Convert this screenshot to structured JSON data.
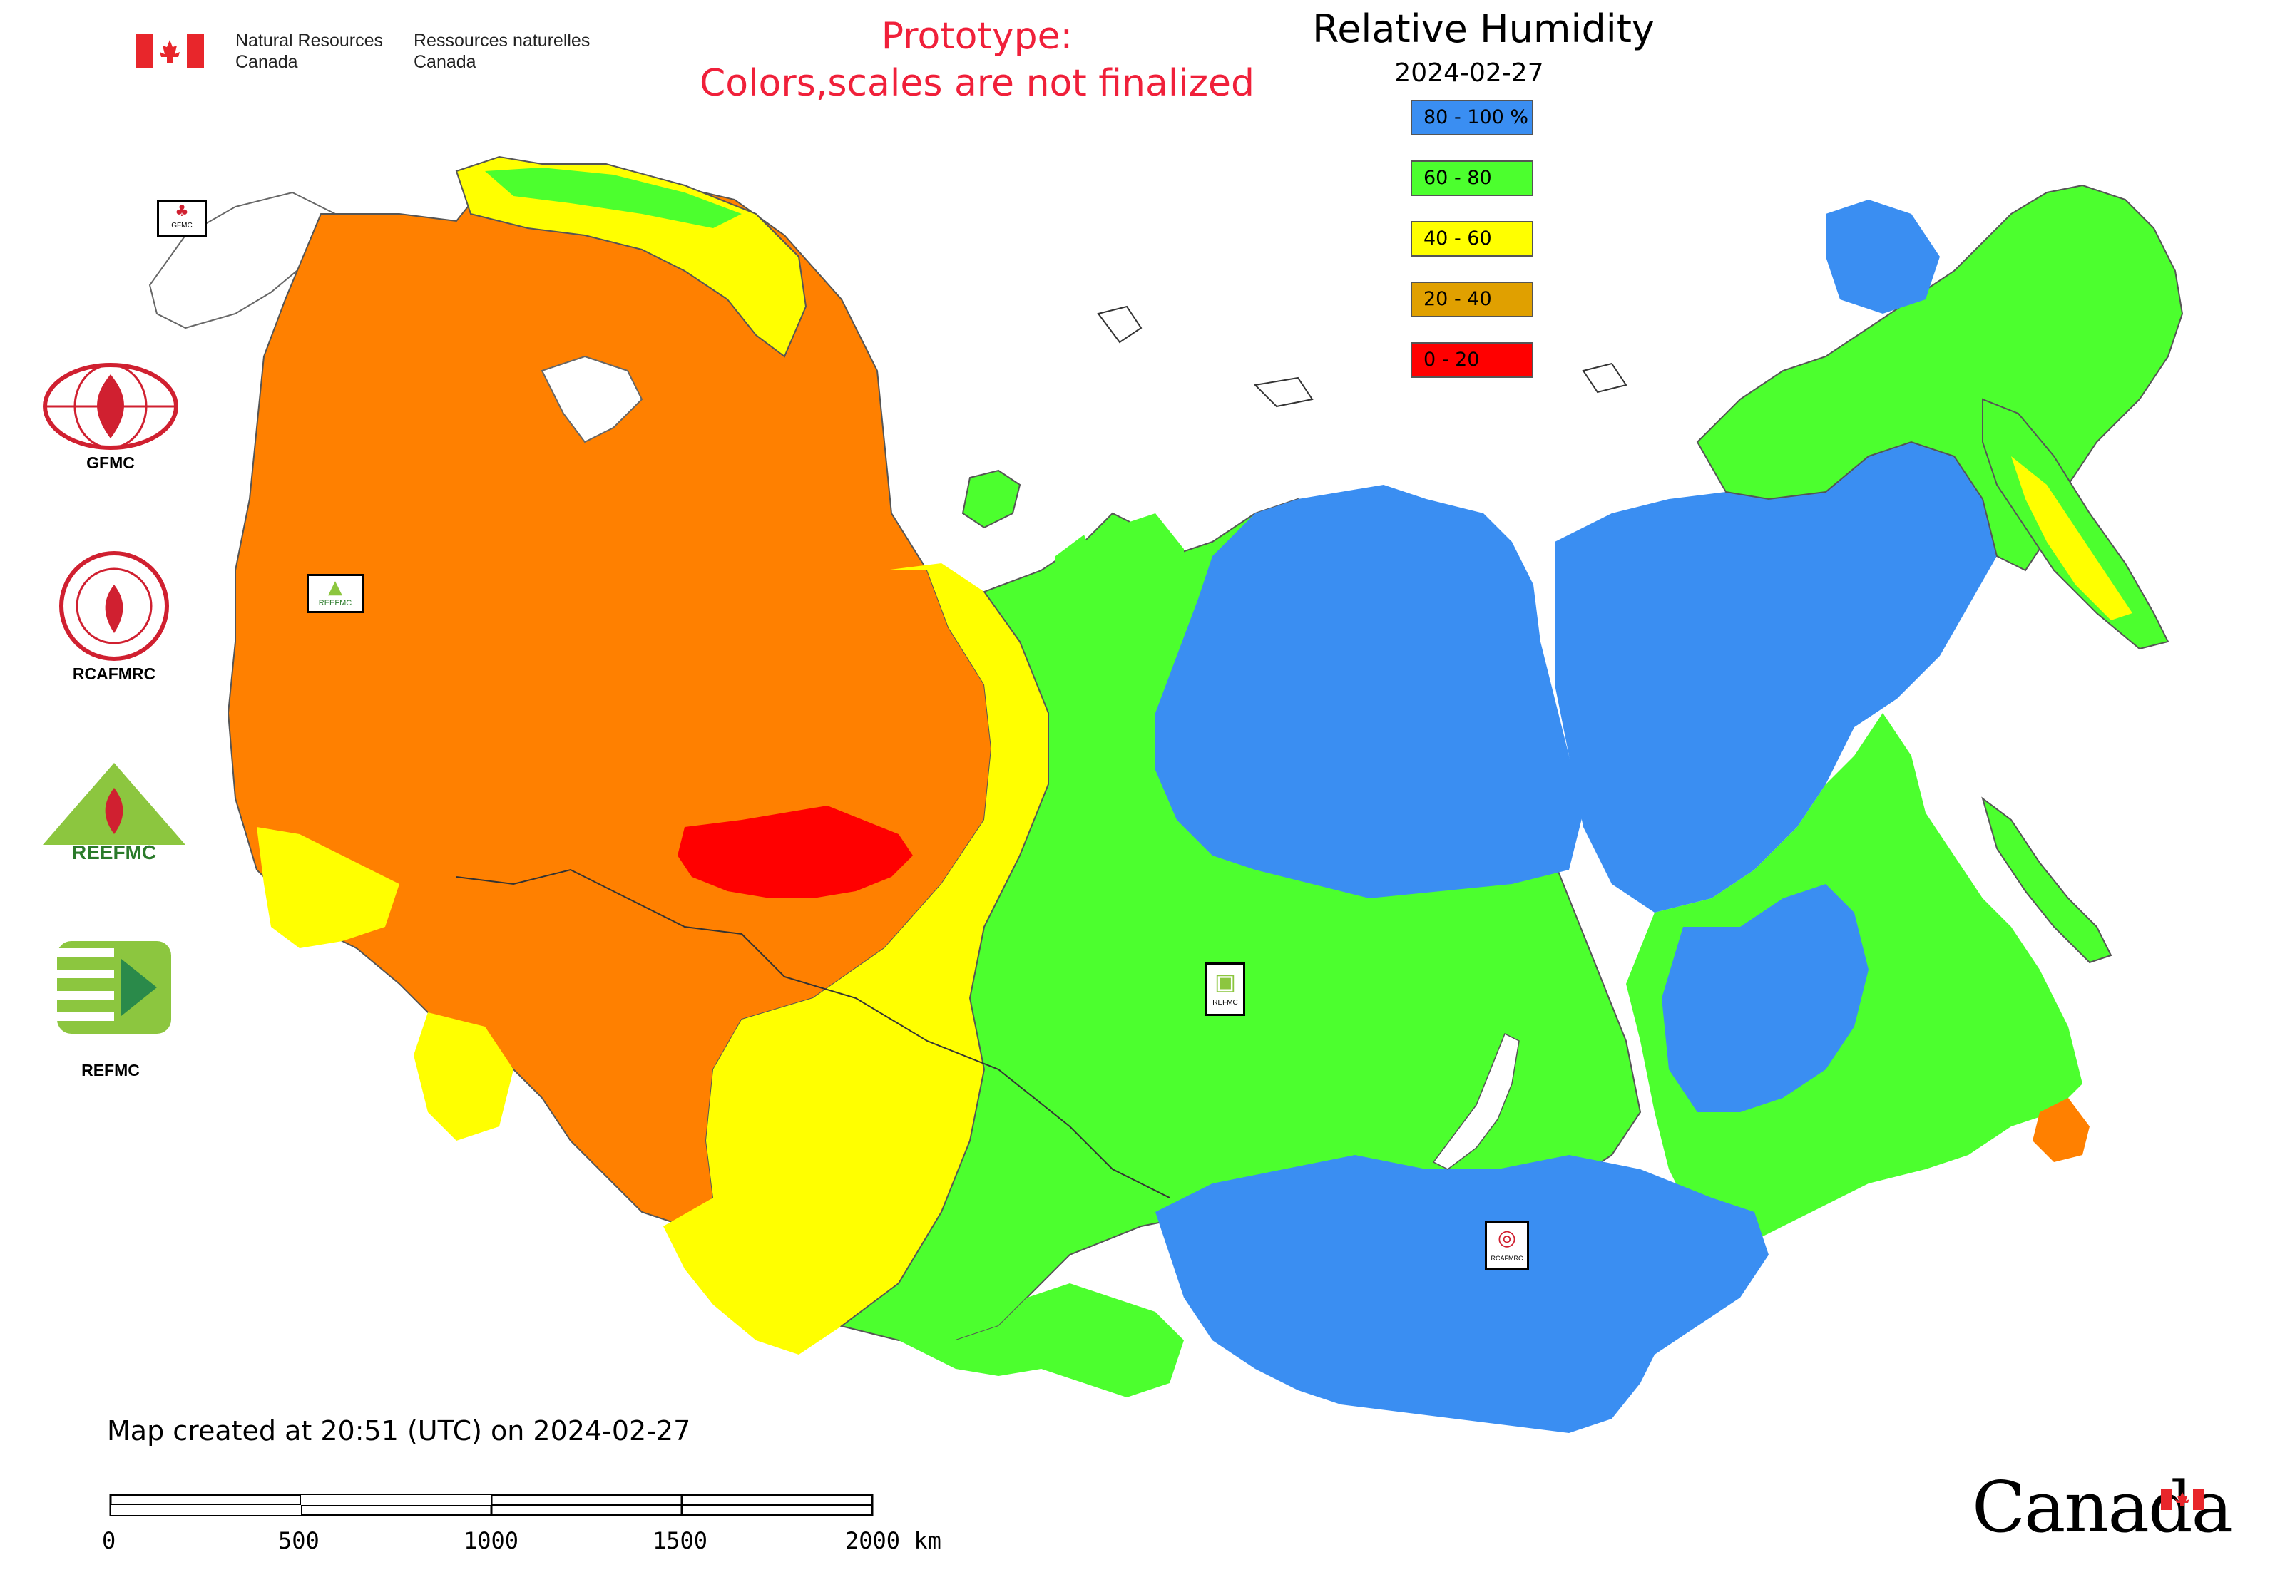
{
  "header": {
    "gov_en_line1": "Natural Resources",
    "gov_en_line2": "Canada",
    "gov_fr_line1": "Ressources naturelles",
    "gov_fr_line2": "Canada",
    "prototype_line1": "Prototype:",
    "prototype_line2": "Colors,scales are not finalized"
  },
  "legend": {
    "title": "Relative Humidity",
    "date": "2024-02-27",
    "items": [
      {
        "label": "80 - 100 %",
        "color": "#3a8ef2"
      },
      {
        "label": "60 - 80",
        "color": "#4cff2e"
      },
      {
        "label": "40 - 60",
        "color": "#ffff00"
      },
      {
        "label": "20 - 40",
        "color": "#e0a000"
      },
      {
        "label": "0 - 20",
        "color": "#ff0000"
      }
    ]
  },
  "logos": {
    "gfmc": "GFMC",
    "rcafmrc": "RCAFMRC",
    "reefmc_mark": "REEFMC",
    "refmc": "REFMC",
    "inset_gfmc": "GFMC",
    "inset_reefmc": "REEFMC",
    "inset_refmc": "REFMC",
    "inset_rcafmrc": "RCAFMRC"
  },
  "footer": {
    "created": "Map created at 20:51 (UTC) on 2024-02-27",
    "scale_ticks": [
      "0",
      "500",
      "1000",
      "1500",
      "2000 km"
    ],
    "wordmark": "Canada"
  },
  "colors": {
    "orange_region": "#ff8000",
    "blue_region": "#3a8ef2",
    "green_region": "#4cff2e",
    "yellow_region": "#ffff00",
    "red_region": "#ff0000",
    "canada_red": "#e8262b"
  }
}
